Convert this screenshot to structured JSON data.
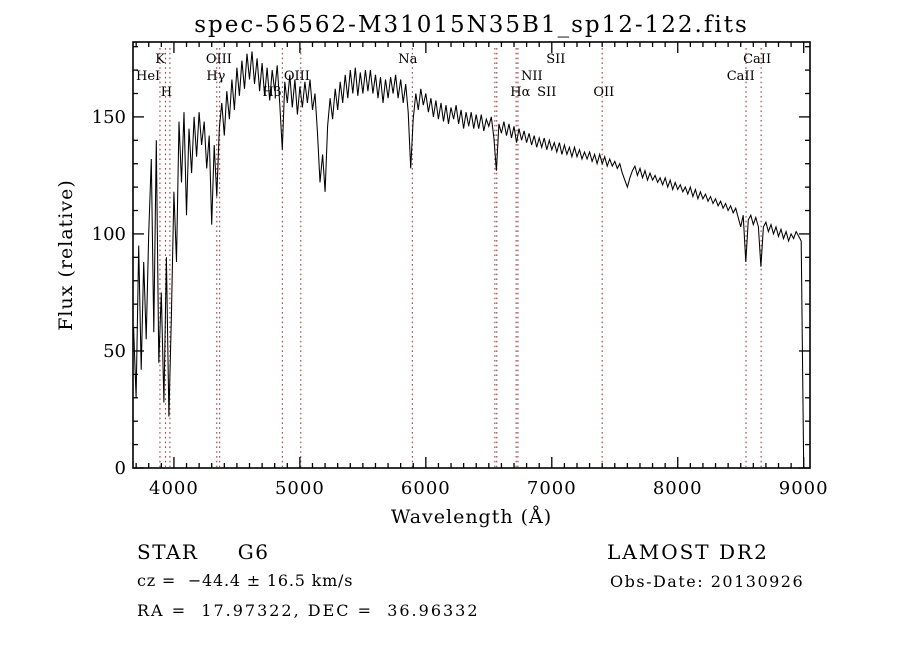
{
  "title": "spec-56562-M31015N35B1_sp12-122.fits",
  "annotations": {
    "class_label": "STAR     G6",
    "cz": "cz =  −44.4 ± 16.5 km/s",
    "radec": "RA =  17.97322, DEC =  36.96332",
    "survey": "LAMOST DR2",
    "obs_date": "Obs-Date: 20130926"
  },
  "chart_data": {
    "type": "line",
    "title": "spec-56562-M31015N35B1_sp12-122.fits",
    "xlabel": "Wavelength (Å)",
    "ylabel": "Flux (relative)",
    "xlim": [
      3675,
      9050
    ],
    "ylim": [
      0,
      182
    ],
    "x_ticks": [
      4000,
      5000,
      6000,
      7000,
      8000,
      9000
    ],
    "y_ticks": [
      0,
      50,
      100,
      150
    ],
    "x_minor_step": 100,
    "y_minor_step": 10,
    "grid": false,
    "line_color": "#000000",
    "marker_color": "#a04040",
    "marker_lines": [
      3889,
      3933,
      3968,
      4340,
      4363,
      4861,
      5007,
      5893,
      6548,
      6563,
      6717,
      6731,
      7400,
      8542,
      8662
    ],
    "marker_labels": [
      {
        "text": "K",
        "row": 1,
        "wavelength": 3890
      },
      {
        "text": "HeI",
        "row": 2,
        "wavelength": 3795
      },
      {
        "text": "H",
        "row": 3,
        "wavelength": 3940
      },
      {
        "text": "OIII",
        "row": 1,
        "wavelength": 4357
      },
      {
        "text": "Hγ",
        "row": 2,
        "wavelength": 4333
      },
      {
        "text": "Hβ",
        "row": 3,
        "wavelength": 4778
      },
      {
        "text": "OIII",
        "row": 2,
        "wavelength": 4976
      },
      {
        "text": "Na",
        "row": 1,
        "wavelength": 5857
      },
      {
        "text": "SII",
        "row": 1,
        "wavelength": 7032
      },
      {
        "text": "NII",
        "row": 2,
        "wavelength": 6841
      },
      {
        "text": "Hα",
        "row": 3,
        "wavelength": 6750
      },
      {
        "text": "SII",
        "row": 3,
        "wavelength": 6960
      },
      {
        "text": "OII",
        "row": 3,
        "wavelength": 7413
      },
      {
        "text": "CaII",
        "row": 1,
        "wavelength": 8630
      },
      {
        "text": "CaII",
        "row": 2,
        "wavelength": 8500
      }
    ],
    "spectrum": {
      "start": 3680,
      "step": 20,
      "flux": [
        60,
        30,
        95,
        42,
        88,
        55,
        100,
        132,
        58,
        140,
        45,
        75,
        28,
        90,
        22,
        65,
        118,
        88,
        148,
        122,
        152,
        108,
        145,
        126,
        150,
        133,
        152,
        138,
        148,
        128,
        142,
        104,
        138,
        116,
        145,
        156,
        142,
        161,
        149,
        166,
        153,
        171,
        159,
        174,
        162,
        177,
        166,
        178,
        164,
        175,
        161,
        173,
        159,
        171,
        157,
        170,
        161,
        172,
        156,
        136,
        165,
        156,
        168,
        154,
        166,
        151,
        163,
        154,
        165,
        156,
        166,
        153,
        160,
        143,
        122,
        134,
        118,
        146,
        158,
        149,
        162,
        153,
        165,
        156,
        168,
        158,
        170,
        160,
        171,
        159,
        169,
        160,
        170,
        161,
        170,
        160,
        168,
        158,
        167,
        156,
        166,
        158,
        167,
        160,
        168,
        158,
        166,
        156,
        164,
        152,
        128,
        149,
        160,
        153,
        162,
        155,
        160,
        152,
        158,
        150,
        157,
        149,
        156,
        148,
        155,
        147,
        154,
        149,
        155,
        147,
        153,
        145,
        152,
        146,
        152,
        145,
        151,
        145,
        151,
        144,
        149,
        146,
        150,
        141,
        127,
        147,
        143,
        148,
        142,
        147,
        141,
        146,
        139,
        145,
        140,
        144,
        139,
        143,
        138,
        142,
        137,
        141,
        137,
        141,
        136,
        140,
        136,
        139,
        135,
        139,
        134,
        138,
        134,
        137,
        133,
        137,
        133,
        136,
        132,
        135,
        132,
        135,
        131,
        134,
        130,
        134,
        130,
        133,
        129,
        132,
        129,
        131,
        128,
        130,
        126,
        123,
        120,
        124,
        127,
        129,
        125,
        128,
        124,
        127,
        123,
        126,
        123,
        125,
        122,
        124,
        121,
        124,
        120,
        123,
        119,
        122,
        119,
        121,
        118,
        120,
        117,
        120,
        116,
        119,
        115,
        118,
        115,
        117,
        114,
        116,
        113,
        115,
        112,
        114,
        111,
        113,
        110,
        112,
        109,
        111,
        107,
        103,
        108,
        88,
        106,
        108,
        104,
        107,
        103,
        86,
        103,
        105,
        101,
        104,
        100,
        103,
        99,
        102,
        98,
        101,
        97,
        100,
        98,
        101,
        99,
        97,
        0
      ]
    }
  }
}
